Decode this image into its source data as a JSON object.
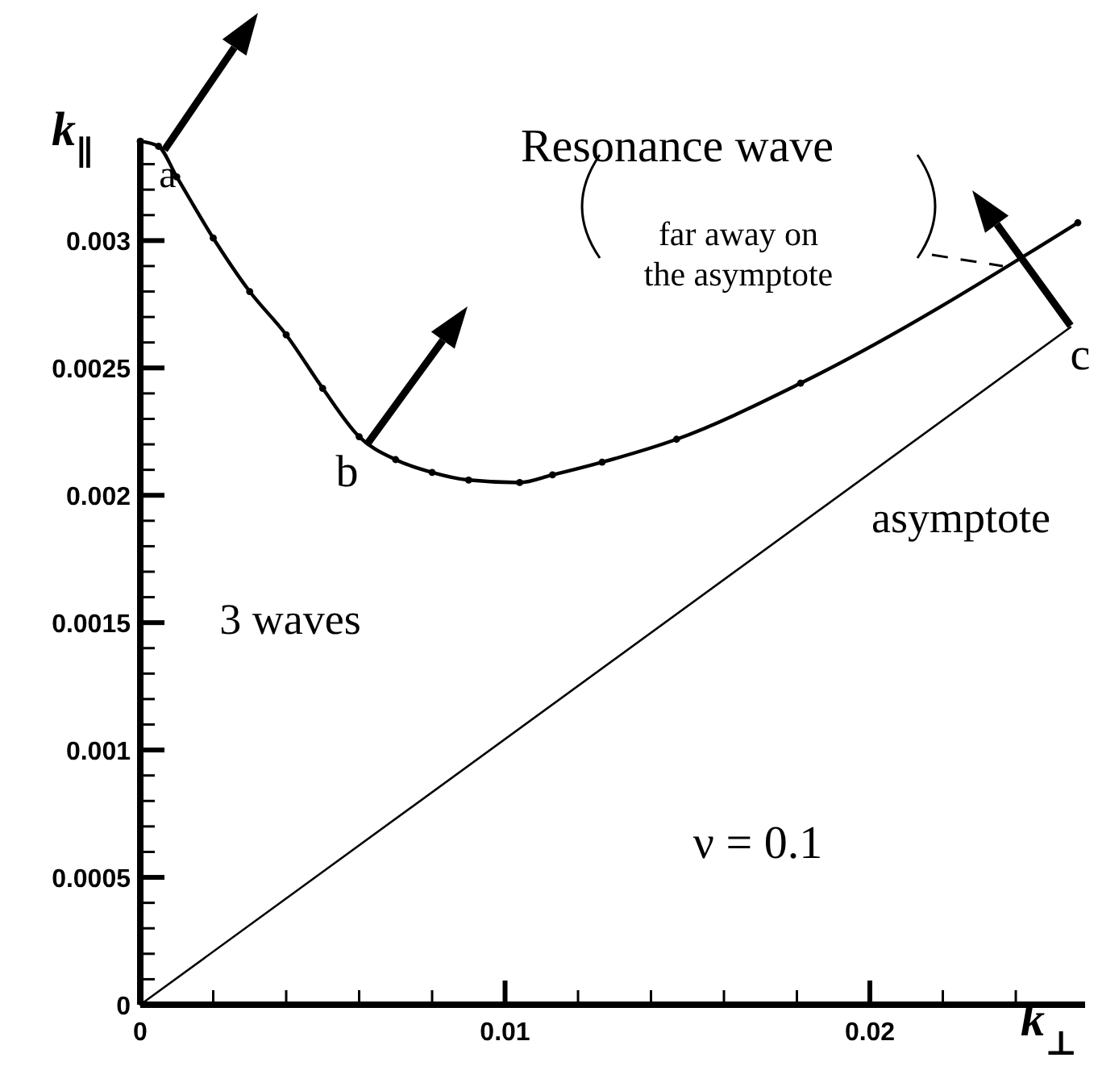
{
  "chart_data": {
    "type": "line",
    "xlabel": "k$_{⊥}$",
    "ylabel": "k$_{∥}$",
    "xlim": [
      0,
      0.0259
    ],
    "ylim": [
      0,
      0.0034
    ],
    "xticks": [
      0,
      {
        "value": 0.002,
        "label": null
      },
      {
        "value": 0.004,
        "label": null
      },
      {
        "value": 0.006,
        "label": null
      },
      {
        "value": 0.008,
        "label": null
      },
      0.01,
      {
        "value": 0.012,
        "label": null
      },
      {
        "value": 0.014,
        "label": null
      },
      {
        "value": 0.016,
        "label": null
      },
      {
        "value": 0.018,
        "label": null
      },
      0.02,
      {
        "value": 0.022,
        "label": null
      },
      {
        "value": 0.024,
        "label": null
      }
    ],
    "yticks": [
      0,
      {
        "value": 0.0001,
        "label": null
      },
      {
        "value": 0.0002,
        "label": null
      },
      {
        "value": 0.0003,
        "label": null
      },
      {
        "value": 0.0004,
        "label": null
      },
      0.0005,
      {
        "value": 0.0006,
        "label": null
      },
      {
        "value": 0.0007,
        "label": null
      },
      {
        "value": 0.0008,
        "label": null
      },
      {
        "value": 0.0009,
        "label": null
      },
      0.001,
      {
        "value": 0.0011,
        "label": null
      },
      {
        "value": 0.0012,
        "label": null
      },
      {
        "value": 0.0013,
        "label": null
      },
      {
        "value": 0.0014,
        "label": null
      },
      0.0015,
      {
        "value": 0.0016,
        "label": null
      },
      {
        "value": 0.0017,
        "label": null
      },
      {
        "value": 0.0018,
        "label": null
      },
      {
        "value": 0.0019,
        "label": null
      },
      0.002,
      {
        "value": 0.0021,
        "label": null
      },
      {
        "value": 0.0022,
        "label": null
      },
      {
        "value": 0.0023,
        "label": null
      },
      {
        "value": 0.0024,
        "label": null
      },
      0.0025,
      {
        "value": 0.0026,
        "label": null
      },
      {
        "value": 0.0027,
        "label": null
      },
      {
        "value": 0.0028,
        "label": null
      },
      {
        "value": 0.0029,
        "label": null
      },
      0.003,
      {
        "value": 0.0031,
        "label": null
      },
      {
        "value": 0.0032,
        "label": null
      },
      {
        "value": 0.0033,
        "label": null
      }
    ],
    "series": [
      {
        "color": "#000000",
        "marker": "circle",
        "x": [
          0,
          0.0005,
          0.001,
          0.002,
          0.003,
          0.004,
          0.005,
          0.006,
          0.007,
          0.008,
          0.009,
          0.0104,
          0.0113,
          0.01266,
          0.0147,
          0.0181,
          0.0257
        ],
        "values": [
          0.00339,
          0.00337,
          0.00325,
          0.00301,
          0.0028,
          0.00263,
          0.00242,
          0.00223,
          0.00214,
          0.00209,
          0.00206,
          0.00205,
          0.00208,
          0.00213,
          0.00222,
          0.00244,
          0.00307
        ]
      },
      {
        "color": "#000000",
        "marker": "none",
        "x": [
          0,
          0.0255
        ],
        "values": [
          0,
          0.00266
        ]
      }
    ],
    "annotations": [
      {
        "text": "a",
        "x": 0.00066,
        "y": 0.00335
      },
      {
        "text": "b",
        "x": 0.0062,
        "y": 0.0022
      },
      {
        "text": "c",
        "x": 0.0255,
        "y": 0.00266
      },
      "Resonance wave",
      "far away on\nthe asymptote",
      "3 waves",
      "asymptote",
      "ν = 0.1"
    ]
  }
}
